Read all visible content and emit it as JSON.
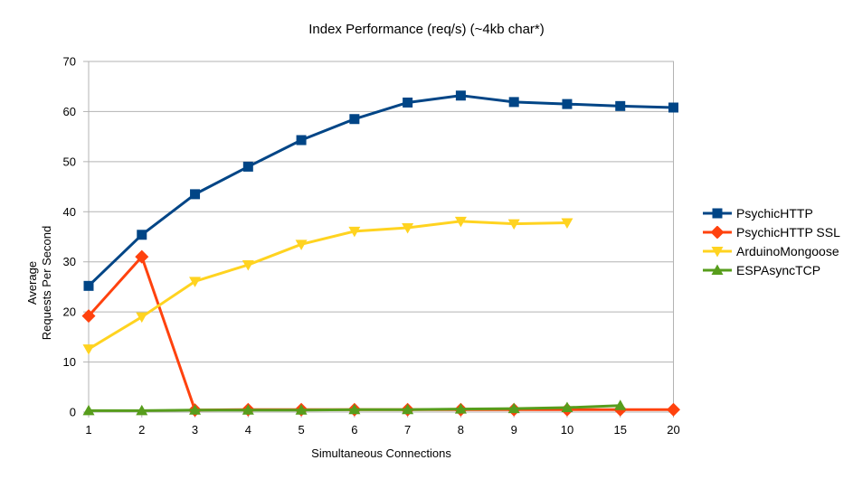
{
  "chart_data": {
    "type": "line",
    "title": "Index Performance (req/s) (~4kb char*)",
    "xlabel": "Simultaneous Connections",
    "ylabel_lines": [
      "Average",
      "Requests Per Second"
    ],
    "categories": [
      "1",
      "2",
      "3",
      "4",
      "5",
      "6",
      "7",
      "8",
      "9",
      "10",
      "15",
      "20"
    ],
    "ylim": [
      0,
      70
    ],
    "ytick_step": 10,
    "grid": "horizontal",
    "legend_position": "right",
    "series": [
      {
        "name": "PsychicHTTP",
        "color": "#004586",
        "marker": "square",
        "values": [
          25.2,
          35.4,
          43.5,
          49.0,
          54.3,
          58.5,
          61.8,
          63.2,
          61.9,
          61.5,
          61.1,
          60.8
        ]
      },
      {
        "name": "PsychicHTTP SSL",
        "color": "#FF420E",
        "marker": "diamond",
        "values": [
          19.2,
          31.0,
          0.4,
          0.5,
          0.5,
          0.5,
          0.5,
          0.5,
          0.5,
          0.5,
          0.5,
          0.5
        ]
      },
      {
        "name": "ArduinoMongoose",
        "color": "#FFD320",
        "marker": "triangle-down",
        "values": [
          12.6,
          19.0,
          26.1,
          29.4,
          33.5,
          36.1,
          36.8,
          38.1,
          37.6,
          37.8,
          null,
          null
        ]
      },
      {
        "name": "ESPAsyncTCP",
        "color": "#579D1C",
        "marker": "triangle-up",
        "values": [
          0.3,
          0.3,
          0.4,
          0.4,
          0.4,
          0.5,
          0.5,
          0.6,
          0.7,
          0.9,
          1.3,
          null
        ]
      }
    ],
    "axis_color": "#b3b3b3",
    "text_color": "#000000",
    "background": "#ffffff"
  }
}
